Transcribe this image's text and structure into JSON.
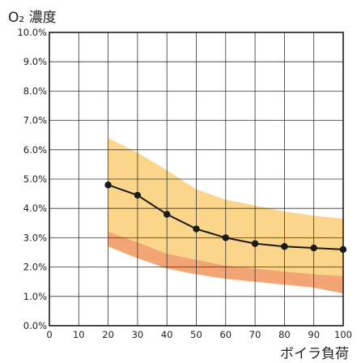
{
  "chart_data": {
    "type": "line",
    "ylabel": "O₂ 濃度",
    "xlabel": "ボイラ負荷",
    "xlim": [
      0,
      100
    ],
    "ylim": [
      0,
      10
    ],
    "x_ticks": [
      "0",
      "10",
      "20",
      "30",
      "40",
      "50",
      "60",
      "70",
      "80",
      "90",
      "100"
    ],
    "y_ticks": [
      "0.0%",
      "1.0%",
      "2.0%",
      "3.0%",
      "4.0%",
      "5.0%",
      "6.0%",
      "7.0%",
      "8.0%",
      "9.0%",
      "10.0%"
    ],
    "grid": true,
    "series": [
      {
        "type": "line",
        "x": [
          20,
          30,
          40,
          50,
          60,
          70,
          80,
          90,
          100
        ],
        "y": [
          4.8,
          4.45,
          3.8,
          3.3,
          3.0,
          2.8,
          2.7,
          2.65,
          2.6
        ],
        "color": "#1a1a1a"
      }
    ],
    "bands": [
      {
        "color": "#fbd68a",
        "x": [
          20,
          30,
          40,
          50,
          60,
          70,
          80,
          90,
          100
        ],
        "upper": [
          6.4,
          5.9,
          5.3,
          4.65,
          4.3,
          4.1,
          3.9,
          3.75,
          3.65
        ],
        "lower": [
          3.2,
          2.85,
          2.45,
          2.25,
          2.05,
          1.95,
          1.85,
          1.75,
          1.7
        ]
      },
      {
        "color": "#f3a576",
        "x": [
          20,
          30,
          40,
          50,
          60,
          70,
          80,
          90,
          100
        ],
        "upper": [
          3.2,
          2.85,
          2.45,
          2.25,
          2.05,
          1.95,
          1.85,
          1.75,
          1.7
        ],
        "lower": [
          2.7,
          2.3,
          1.95,
          1.75,
          1.6,
          1.5,
          1.4,
          1.3,
          1.1
        ]
      }
    ]
  }
}
